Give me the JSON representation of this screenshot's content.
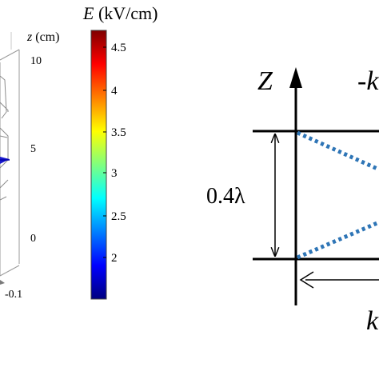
{
  "left_panel": {
    "z_axis": {
      "label_var": "z",
      "label_unit": " (cm)",
      "ticks": [
        "10",
        "5",
        "0"
      ],
      "x_tick": "-0.1"
    },
    "colorbar": {
      "label_var": "E",
      "label_unit": " (kV/cm)",
      "ticks": [
        "4.5",
        "4",
        "3.5",
        "3",
        "2.5",
        "2"
      ],
      "colormap": [
        "#00007f",
        "#0000ff",
        "#007fff",
        "#00ffff",
        "#7fff7f",
        "#ffff00",
        "#ff7f00",
        "#ff0000",
        "#7f0000"
      ]
    }
  },
  "right_panel": {
    "axis_label": "Z",
    "top_label": "-k",
    "bottom_label": "k",
    "dimension_label": "0.4λ",
    "colors": {
      "wave": "#2e75b6",
      "lines": "#000000"
    }
  }
}
